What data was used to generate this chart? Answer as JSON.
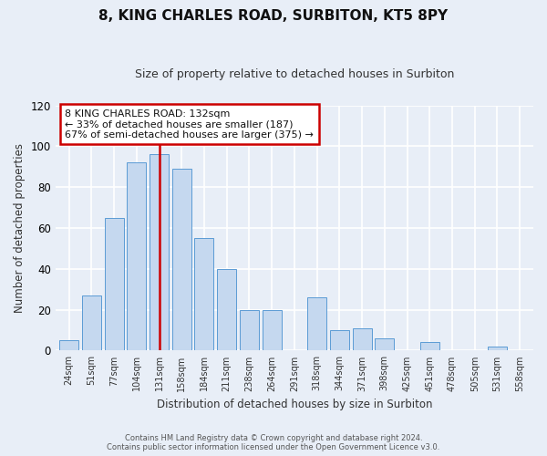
{
  "title": "8, KING CHARLES ROAD, SURBITON, KT5 8PY",
  "subtitle": "Size of property relative to detached houses in Surbiton",
  "xlabel": "Distribution of detached houses by size in Surbiton",
  "ylabel": "Number of detached properties",
  "categories": [
    "24sqm",
    "51sqm",
    "77sqm",
    "104sqm",
    "131sqm",
    "158sqm",
    "184sqm",
    "211sqm",
    "238sqm",
    "264sqm",
    "291sqm",
    "318sqm",
    "344sqm",
    "371sqm",
    "398sqm",
    "425sqm",
    "451sqm",
    "478sqm",
    "505sqm",
    "531sqm",
    "558sqm"
  ],
  "values": [
    5,
    27,
    65,
    92,
    96,
    89,
    55,
    40,
    20,
    20,
    0,
    26,
    10,
    11,
    6,
    0,
    4,
    0,
    0,
    2,
    0
  ],
  "bar_color": "#c5d8ef",
  "bar_edge_color": "#5b9bd5",
  "highlight_index": 4,
  "vline_color": "#cc0000",
  "annotation_line1": "8 KING CHARLES ROAD: 132sqm",
  "annotation_line2": "← 33% of detached houses are smaller (187)",
  "annotation_line3": "67% of semi-detached houses are larger (375) →",
  "annotation_box_edge": "#cc0000",
  "ylim": [
    0,
    120
  ],
  "yticks": [
    0,
    20,
    40,
    60,
    80,
    100,
    120
  ],
  "footer_line1": "Contains HM Land Registry data © Crown copyright and database right 2024.",
  "footer_line2": "Contains public sector information licensed under the Open Government Licence v3.0.",
  "bg_color": "#e8eef7",
  "plot_bg_color": "#e8eef7",
  "grid_color": "#ffffff",
  "title_fontsize": 11,
  "subtitle_fontsize": 9
}
